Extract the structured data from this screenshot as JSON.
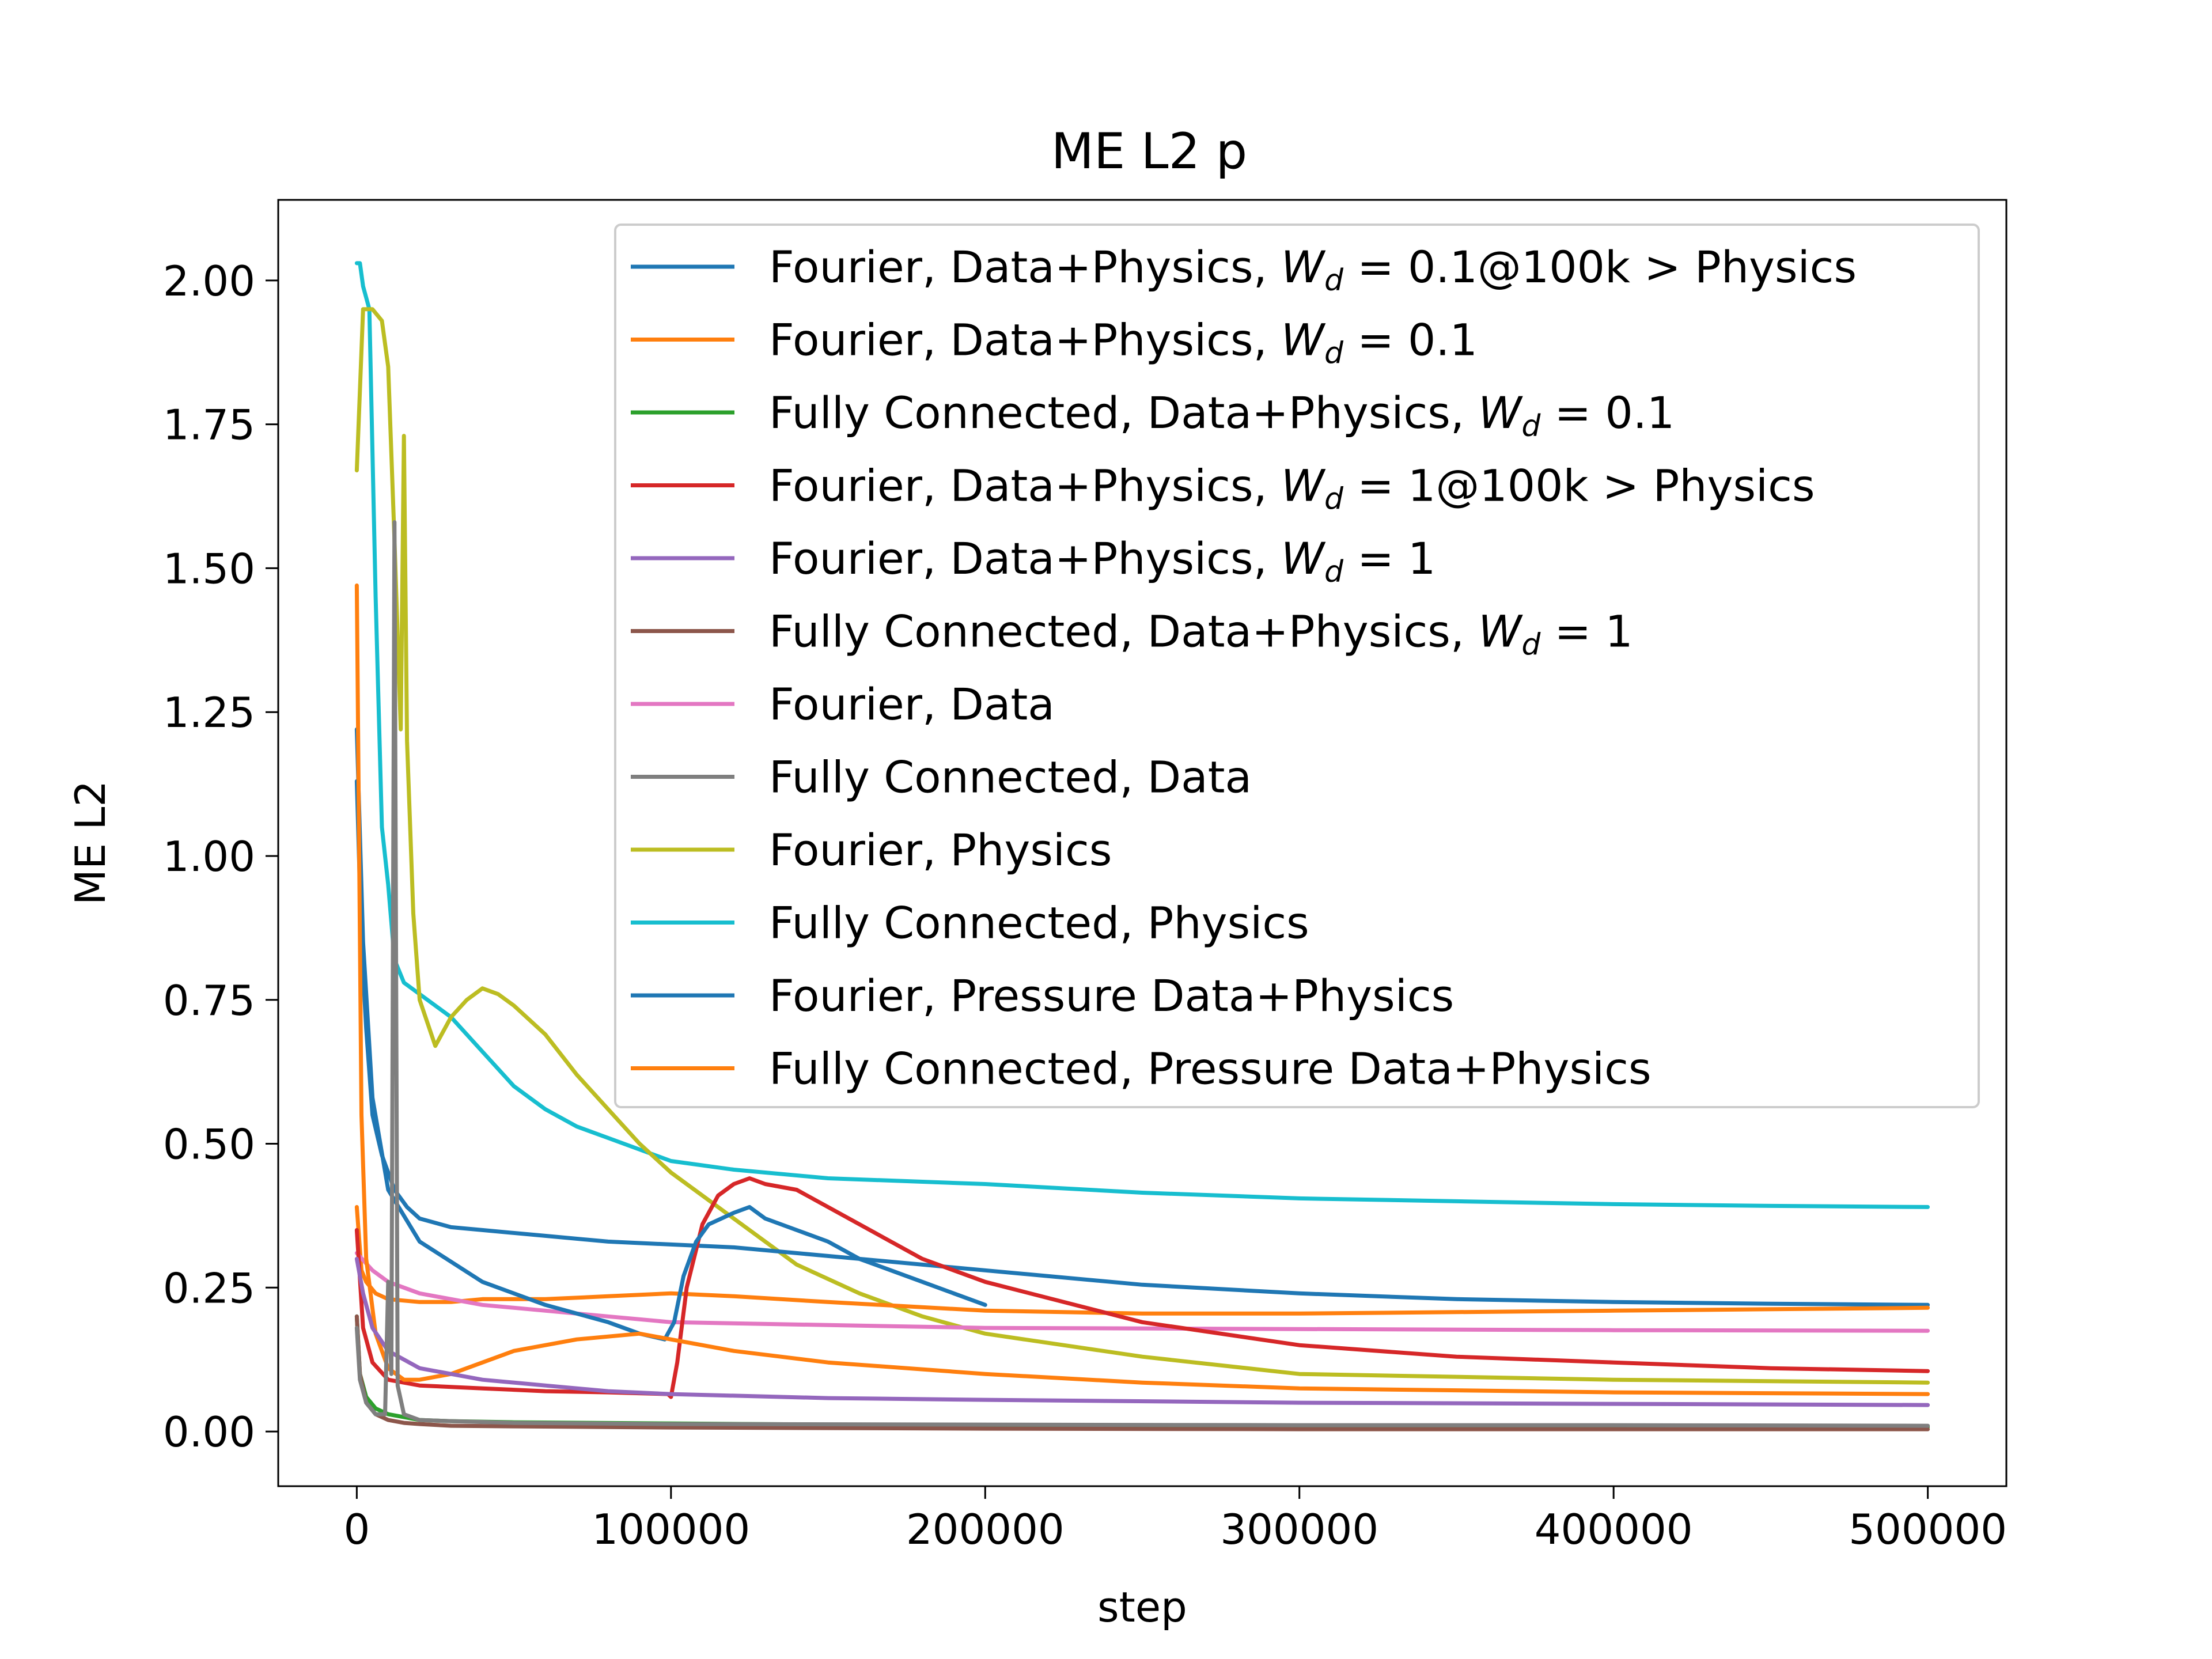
{
  "chart_data": {
    "type": "line",
    "title": "ME L2 p",
    "xlabel": "step",
    "ylabel": "ME L2",
    "xlim": [
      -25000,
      525000
    ],
    "ylim": [
      -0.095,
      2.14
    ],
    "x_ticks": [
      0,
      100000,
      200000,
      300000,
      400000,
      500000
    ],
    "x_tick_labels": [
      "0",
      "100000",
      "200000",
      "300000",
      "400000",
      "500000"
    ],
    "y_ticks": [
      0.0,
      0.25,
      0.5,
      0.75,
      1.0,
      1.25,
      1.5,
      1.75,
      2.0
    ],
    "y_tick_labels": [
      "0.00",
      "0.25",
      "0.50",
      "0.75",
      "1.00",
      "1.25",
      "1.50",
      "1.75",
      "2.00"
    ],
    "grid": false,
    "legend_position": "upper-right",
    "series": [
      {
        "name": "Fourier, Data+Physics, W_d = 0.1@100k > Physics",
        "legend_main": "Fourier, Data+Physics, ",
        "legend_tail": " = 0.1@100k > Physics",
        "color": "#1f77b4",
        "x": [
          0,
          2000,
          5000,
          10000,
          20000,
          40000,
          60000,
          80000,
          90000,
          98000,
          101000,
          104000,
          108000,
          112000,
          116000,
          120000,
          125000,
          130000,
          140000,
          150000,
          160000,
          170000,
          180000,
          190000,
          200000
        ],
        "y": [
          1.22,
          0.85,
          0.58,
          0.42,
          0.33,
          0.26,
          0.22,
          0.19,
          0.17,
          0.16,
          0.19,
          0.27,
          0.33,
          0.36,
          0.37,
          0.38,
          0.39,
          0.37,
          0.35,
          0.33,
          0.3,
          0.28,
          0.26,
          0.24,
          0.22
        ]
      },
      {
        "name": "Fourier, Data+Physics, W_d = 0.1",
        "legend_main": "Fourier, Data+Physics, ",
        "legend_tail": " = 0.1",
        "color": "#ff7f0e",
        "x": [
          0,
          1500,
          3000,
          6000,
          10000,
          15000,
          20000,
          30000,
          50000,
          70000,
          90000,
          100000,
          120000,
          150000,
          200000,
          250000,
          300000,
          400000,
          500000
        ],
        "y": [
          1.47,
          0.55,
          0.3,
          0.17,
          0.11,
          0.09,
          0.09,
          0.1,
          0.14,
          0.16,
          0.17,
          0.16,
          0.14,
          0.12,
          0.1,
          0.085,
          0.075,
          0.068,
          0.065
        ]
      },
      {
        "name": "Fully Connected, Data+Physics, W_d = 0.1",
        "legend_main": "Fully Connected, Data+Physics, ",
        "legend_tail": " = 0.1",
        "color": "#2ca02c",
        "x": [
          0,
          1000,
          3000,
          6000,
          10000,
          15000,
          20000,
          30000,
          50000,
          100000,
          150000,
          200000,
          300000,
          400000,
          500000
        ],
        "y": [
          0.2,
          0.1,
          0.06,
          0.04,
          0.03,
          0.025,
          0.02,
          0.018,
          0.016,
          0.014,
          0.012,
          0.011,
          0.01,
          0.009,
          0.008
        ]
      },
      {
        "name": "Fourier, Data+Physics, W_d = 1@100k > Physics",
        "legend_main": "Fourier, Data+Physics, ",
        "legend_tail": " = 1@100k > Physics",
        "color": "#d62728",
        "x": [
          0,
          2000,
          5000,
          10000,
          20000,
          40000,
          60000,
          80000,
          99000,
          100000,
          102000,
          105000,
          110000,
          115000,
          120000,
          125000,
          130000,
          140000,
          150000,
          160000,
          170000,
          180000,
          200000,
          250000,
          300000,
          350000,
          400000,
          450000,
          500000
        ],
        "y": [
          0.35,
          0.18,
          0.12,
          0.09,
          0.08,
          0.075,
          0.07,
          0.068,
          0.065,
          0.06,
          0.12,
          0.25,
          0.36,
          0.41,
          0.43,
          0.44,
          0.43,
          0.42,
          0.39,
          0.36,
          0.33,
          0.3,
          0.26,
          0.19,
          0.15,
          0.13,
          0.12,
          0.11,
          0.105
        ]
      },
      {
        "name": "Fourier, Data+Physics, W_d = 1",
        "legend_main": "Fourier, Data+Physics, ",
        "legend_tail": " = 1",
        "color": "#9467bd",
        "x": [
          0,
          2000,
          5000,
          10000,
          20000,
          40000,
          60000,
          80000,
          100000,
          150000,
          200000,
          300000,
          400000,
          500000
        ],
        "y": [
          0.3,
          0.24,
          0.18,
          0.14,
          0.11,
          0.09,
          0.08,
          0.07,
          0.065,
          0.058,
          0.055,
          0.05,
          0.048,
          0.046
        ]
      },
      {
        "name": "Fully Connected, Data+Physics, W_d = 1",
        "legend_main": "Fully Connected, Data+Physics, ",
        "legend_tail": " = 1",
        "color": "#8c564b",
        "x": [
          0,
          1000,
          3000,
          6000,
          10000,
          15000,
          20000,
          30000,
          50000,
          100000,
          150000,
          200000,
          300000,
          400000,
          500000
        ],
        "y": [
          0.2,
          0.1,
          0.05,
          0.03,
          0.02,
          0.015,
          0.013,
          0.01,
          0.009,
          0.007,
          0.006,
          0.005,
          0.004,
          0.004,
          0.004
        ]
      },
      {
        "name": "Fourier, Data",
        "legend_main": "Fourier, Data",
        "legend_tail": "",
        "color": "#e377c2",
        "x": [
          0,
          5000,
          10000,
          20000,
          40000,
          60000,
          80000,
          100000,
          150000,
          200000,
          300000,
          400000,
          500000
        ],
        "y": [
          0.31,
          0.28,
          0.26,
          0.24,
          0.22,
          0.21,
          0.2,
          0.19,
          0.185,
          0.18,
          0.178,
          0.176,
          0.175
        ]
      },
      {
        "name": "Fully Connected, Data",
        "legend_main": "Fully Connected, Data",
        "legend_tail": "",
        "color": "#7f7f7f",
        "x": [
          0,
          1000,
          3000,
          6000,
          9000,
          10000,
          11000,
          12000,
          13000,
          15000,
          20000,
          30000,
          50000,
          100000,
          200000,
          300000,
          400000,
          500000
        ],
        "y": [
          0.18,
          0.09,
          0.05,
          0.03,
          0.03,
          0.26,
          0.1,
          1.58,
          0.08,
          0.03,
          0.02,
          0.018,
          0.015,
          0.013,
          0.012,
          0.011,
          0.011,
          0.01
        ]
      },
      {
        "name": "Fourier, Physics",
        "legend_main": "Fourier, Physics",
        "legend_tail": "",
        "color": "#bcbd22",
        "x": [
          0,
          2000,
          5000,
          8000,
          10000,
          12000,
          14000,
          15000,
          16000,
          18000,
          20000,
          25000,
          30000,
          35000,
          40000,
          45000,
          50000,
          60000,
          70000,
          80000,
          90000,
          100000,
          110000,
          120000,
          130000,
          140000,
          160000,
          180000,
          200000,
          250000,
          300000,
          400000,
          500000
        ],
        "y": [
          1.67,
          1.95,
          1.95,
          1.93,
          1.85,
          1.55,
          1.22,
          1.73,
          1.2,
          0.9,
          0.75,
          0.67,
          0.72,
          0.75,
          0.77,
          0.76,
          0.74,
          0.69,
          0.62,
          0.56,
          0.5,
          0.45,
          0.41,
          0.37,
          0.33,
          0.29,
          0.24,
          0.2,
          0.17,
          0.13,
          0.1,
          0.09,
          0.085
        ]
      },
      {
        "name": "Fully Connected, Physics",
        "legend_main": "Fully Connected, Physics",
        "legend_tail": "",
        "color": "#17becf",
        "x": [
          0,
          1000,
          2000,
          4000,
          6000,
          8000,
          10000,
          12000,
          15000,
          20000,
          30000,
          40000,
          50000,
          60000,
          70000,
          80000,
          90000,
          100000,
          120000,
          150000,
          200000,
          250000,
          300000,
          350000,
          400000,
          450000,
          500000
        ],
        "y": [
          2.03,
          2.03,
          1.99,
          1.95,
          1.45,
          1.05,
          0.95,
          0.82,
          0.78,
          0.76,
          0.72,
          0.66,
          0.6,
          0.56,
          0.53,
          0.51,
          0.49,
          0.47,
          0.455,
          0.44,
          0.43,
          0.415,
          0.405,
          0.4,
          0.395,
          0.392,
          0.39
        ]
      },
      {
        "name": "Fourier, Pressure Data+Physics",
        "legend_main": "Fourier, Pressure Data+Physics",
        "legend_tail": "",
        "color": "#1f77b4",
        "x": [
          0,
          1500,
          3000,
          5000,
          8000,
          12000,
          16000,
          20000,
          30000,
          40000,
          60000,
          80000,
          100000,
          120000,
          150000,
          200000,
          250000,
          300000,
          350000,
          400000,
          450000,
          500000
        ],
        "y": [
          1.13,
          0.85,
          0.7,
          0.55,
          0.48,
          0.42,
          0.39,
          0.37,
          0.355,
          0.35,
          0.34,
          0.33,
          0.325,
          0.32,
          0.305,
          0.28,
          0.255,
          0.24,
          0.23,
          0.225,
          0.222,
          0.22
        ]
      },
      {
        "name": "Fully Connected, Pressure Data+Physics",
        "legend_main": "Fully Connected, Pressure Data+Physics",
        "legend_tail": "",
        "color": "#ff7f0e",
        "x": [
          0,
          1500,
          3000,
          6000,
          10000,
          20000,
          30000,
          40000,
          50000,
          60000,
          80000,
          100000,
          120000,
          150000,
          200000,
          250000,
          300000,
          400000,
          500000
        ],
        "y": [
          0.39,
          0.28,
          0.26,
          0.24,
          0.23,
          0.225,
          0.225,
          0.23,
          0.23,
          0.23,
          0.235,
          0.24,
          0.235,
          0.225,
          0.21,
          0.205,
          0.205,
          0.21,
          0.215
        ]
      }
    ]
  }
}
